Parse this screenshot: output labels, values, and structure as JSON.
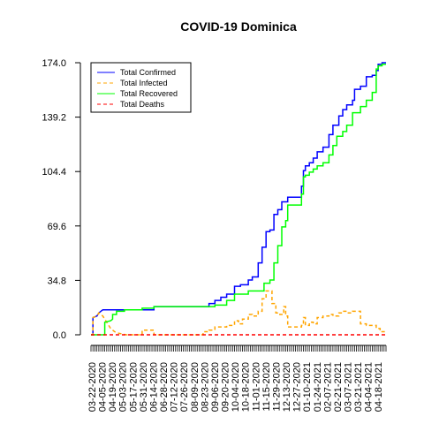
{
  "chart_data": {
    "type": "line",
    "title": "COVID-19 Dominica",
    "xlabel": "",
    "ylabel": "",
    "ylim": [
      0,
      174
    ],
    "y_ticks": [
      "0.0",
      "34.8",
      "69.6",
      "104.4",
      "139.2",
      "174.0"
    ],
    "x_tick_labels": [
      "03-22-2020",
      "04-05-2020",
      "04-19-2020",
      "05-03-2020",
      "05-17-2020",
      "05-31-2020",
      "06-14-2020",
      "06-28-2020",
      "07-12-2020",
      "07-26-2020",
      "08-09-2020",
      "08-23-2020",
      "09-06-2020",
      "09-20-2020",
      "10-04-2020",
      "10-18-2020",
      "11-01-2020",
      "11-15-2020",
      "11-29-2020",
      "12-13-2020",
      "12-27-2020",
      "01-10-2021",
      "01-24-2021",
      "02-07-2021",
      "02-21-2021",
      "03-07-2021",
      "03-21-2021",
      "04-04-2021",
      "04-18-2021"
    ],
    "legend_position": "top-left",
    "grid": false,
    "series": [
      {
        "name": "Total Confirmed",
        "color": "#0000ff",
        "dash": "solid",
        "points": [
          [
            0,
            0
          ],
          [
            1,
            0
          ],
          [
            1,
            11
          ],
          [
            3,
            12
          ],
          [
            4,
            14
          ],
          [
            6,
            16
          ],
          [
            32,
            16
          ],
          [
            32,
            18
          ],
          [
            38,
            18
          ],
          [
            60,
            18
          ],
          [
            60,
            20
          ],
          [
            63,
            20
          ],
          [
            63,
            22
          ],
          [
            66,
            22
          ],
          [
            66,
            24
          ],
          [
            69,
            24
          ],
          [
            69,
            26
          ],
          [
            73,
            26
          ],
          [
            73,
            31
          ],
          [
            76,
            31
          ],
          [
            76,
            32
          ],
          [
            80,
            32
          ],
          [
            80,
            35
          ],
          [
            82,
            35
          ],
          [
            82,
            37
          ],
          [
            85,
            37
          ],
          [
            85,
            46
          ],
          [
            87,
            46
          ],
          [
            87,
            56
          ],
          [
            89,
            56
          ],
          [
            89,
            66
          ],
          [
            91,
            66
          ],
          [
            91,
            67
          ],
          [
            93,
            67
          ],
          [
            93,
            77
          ],
          [
            95,
            77
          ],
          [
            95,
            80
          ],
          [
            97,
            80
          ],
          [
            97,
            85
          ],
          [
            100,
            85
          ],
          [
            100,
            88
          ],
          [
            107,
            88
          ],
          [
            107,
            95
          ],
          [
            108,
            95
          ],
          [
            108,
            105
          ],
          [
            109,
            105
          ],
          [
            109,
            108
          ],
          [
            111,
            108
          ],
          [
            111,
            110
          ],
          [
            113,
            110
          ],
          [
            113,
            113
          ],
          [
            115,
            113
          ],
          [
            115,
            117
          ],
          [
            118,
            117
          ],
          [
            118,
            120
          ],
          [
            121,
            120
          ],
          [
            121,
            128
          ],
          [
            123,
            128
          ],
          [
            123,
            134
          ],
          [
            126,
            134
          ],
          [
            126,
            140
          ],
          [
            128,
            140
          ],
          [
            128,
            144
          ],
          [
            130,
            144
          ],
          [
            130,
            147
          ],
          [
            133,
            147
          ],
          [
            133,
            150
          ],
          [
            134,
            150
          ],
          [
            134,
            157
          ],
          [
            137,
            157
          ],
          [
            137,
            159
          ],
          [
            140,
            159
          ],
          [
            140,
            165
          ],
          [
            143,
            165
          ],
          [
            143,
            166
          ],
          [
            145,
            166
          ],
          [
            145,
            169
          ],
          [
            146,
            169
          ],
          [
            146,
            173
          ],
          [
            148,
            173
          ],
          [
            148,
            174
          ],
          [
            150,
            174
          ]
        ]
      },
      {
        "name": "Total Infected",
        "color": "#ffa500",
        "dash": "dashed",
        "points": [
          [
            0,
            0
          ],
          [
            1,
            0
          ],
          [
            1,
            11
          ],
          [
            3,
            12
          ],
          [
            4,
            14
          ],
          [
            6,
            12
          ],
          [
            8,
            8
          ],
          [
            10,
            4
          ],
          [
            12,
            2
          ],
          [
            14,
            1
          ],
          [
            18,
            0
          ],
          [
            26,
            0
          ],
          [
            26,
            3
          ],
          [
            32,
            3
          ],
          [
            32,
            0
          ],
          [
            57,
            0
          ],
          [
            57,
            2
          ],
          [
            60,
            2
          ],
          [
            60,
            3
          ],
          [
            63,
            3
          ],
          [
            63,
            5
          ],
          [
            69,
            5
          ],
          [
            69,
            6
          ],
          [
            73,
            6
          ],
          [
            73,
            9
          ],
          [
            75,
            9
          ],
          [
            75,
            7
          ],
          [
            77,
            7
          ],
          [
            77,
            10
          ],
          [
            80,
            10
          ],
          [
            80,
            13
          ],
          [
            82,
            13
          ],
          [
            82,
            12
          ],
          [
            85,
            12
          ],
          [
            85,
            15
          ],
          [
            87,
            15
          ],
          [
            87,
            23
          ],
          [
            89,
            23
          ],
          [
            89,
            28
          ],
          [
            92,
            28
          ],
          [
            92,
            20
          ],
          [
            94,
            20
          ],
          [
            94,
            14
          ],
          [
            96,
            14
          ],
          [
            96,
            13
          ],
          [
            98,
            13
          ],
          [
            98,
            18
          ],
          [
            99,
            18
          ],
          [
            99,
            12
          ],
          [
            100,
            12
          ],
          [
            100,
            5
          ],
          [
            107,
            5
          ],
          [
            107,
            6
          ],
          [
            108,
            6
          ],
          [
            108,
            11
          ],
          [
            109,
            11
          ],
          [
            109,
            6
          ],
          [
            111,
            6
          ],
          [
            111,
            8
          ],
          [
            113,
            8
          ],
          [
            113,
            7
          ],
          [
            115,
            7
          ],
          [
            115,
            11
          ],
          [
            118,
            11
          ],
          [
            118,
            12
          ],
          [
            121,
            12
          ],
          [
            121,
            13
          ],
          [
            123,
            13
          ],
          [
            123,
            12
          ],
          [
            126,
            12
          ],
          [
            126,
            14
          ],
          [
            128,
            14
          ],
          [
            128,
            15
          ],
          [
            130,
            15
          ],
          [
            130,
            14
          ],
          [
            133,
            14
          ],
          [
            133,
            15
          ],
          [
            137,
            15
          ],
          [
            137,
            7
          ],
          [
            140,
            7
          ],
          [
            140,
            6
          ],
          [
            143,
            6
          ],
          [
            143,
            6
          ],
          [
            145,
            6
          ],
          [
            145,
            4
          ],
          [
            147,
            4
          ],
          [
            147,
            2
          ],
          [
            150,
            2
          ]
        ]
      },
      {
        "name": "Total Recovered",
        "color": "#00ff00",
        "dash": "solid",
        "points": [
          [
            0,
            0
          ],
          [
            7,
            0
          ],
          [
            7,
            8
          ],
          [
            10,
            9
          ],
          [
            11,
            10
          ],
          [
            11,
            13
          ],
          [
            13,
            13
          ],
          [
            13,
            15
          ],
          [
            17,
            15
          ],
          [
            17,
            16
          ],
          [
            26,
            16
          ],
          [
            26,
            17
          ],
          [
            32,
            17
          ],
          [
            32,
            18
          ],
          [
            63,
            18
          ],
          [
            63,
            19
          ],
          [
            69,
            19
          ],
          [
            69,
            22
          ],
          [
            73,
            22
          ],
          [
            73,
            26
          ],
          [
            80,
            26
          ],
          [
            80,
            28
          ],
          [
            88,
            28
          ],
          [
            88,
            33
          ],
          [
            91,
            33
          ],
          [
            91,
            35
          ],
          [
            93,
            35
          ],
          [
            93,
            46
          ],
          [
            95,
            46
          ],
          [
            95,
            57
          ],
          [
            97,
            57
          ],
          [
            97,
            69
          ],
          [
            99,
            69
          ],
          [
            99,
            73
          ],
          [
            100,
            73
          ],
          [
            100,
            83
          ],
          [
            107,
            83
          ],
          [
            107,
            90
          ],
          [
            108,
            90
          ],
          [
            108,
            101
          ],
          [
            109,
            101
          ],
          [
            109,
            102
          ],
          [
            111,
            102
          ],
          [
            111,
            104
          ],
          [
            113,
            104
          ],
          [
            113,
            106
          ],
          [
            115,
            106
          ],
          [
            115,
            108
          ],
          [
            118,
            108
          ],
          [
            118,
            110
          ],
          [
            121,
            110
          ],
          [
            121,
            115
          ],
          [
            123,
            115
          ],
          [
            123,
            121
          ],
          [
            125,
            121
          ],
          [
            125,
            127
          ],
          [
            128,
            127
          ],
          [
            128,
            130
          ],
          [
            130,
            130
          ],
          [
            130,
            134
          ],
          [
            133,
            134
          ],
          [
            133,
            142
          ],
          [
            137,
            142
          ],
          [
            137,
            146
          ],
          [
            140,
            146
          ],
          [
            140,
            150
          ],
          [
            143,
            150
          ],
          [
            143,
            155
          ],
          [
            145,
            155
          ],
          [
            145,
            170
          ],
          [
            146,
            170
          ],
          [
            146,
            172
          ],
          [
            148,
            172
          ],
          [
            148,
            173
          ],
          [
            150,
            173
          ]
        ]
      },
      {
        "name": "Total Deaths",
        "color": "#ff0000",
        "dash": "dashed",
        "points": [
          [
            0,
            0
          ],
          [
            150,
            0
          ]
        ]
      }
    ]
  }
}
